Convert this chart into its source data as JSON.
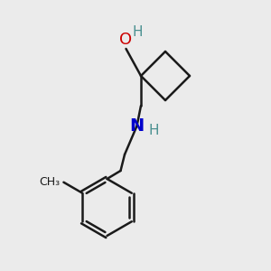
{
  "background_color": "#ebebeb",
  "bond_color": "#1a1a1a",
  "oxygen_color": "#cc0000",
  "nitrogen_color": "#0000cc",
  "hydrogen_color": "#4a9090",
  "bond_width": 1.8,
  "figsize": [
    3.0,
    3.0
  ],
  "dpi": 100,
  "xlim": [
    0,
    10
  ],
  "ylim": [
    0,
    10
  ]
}
